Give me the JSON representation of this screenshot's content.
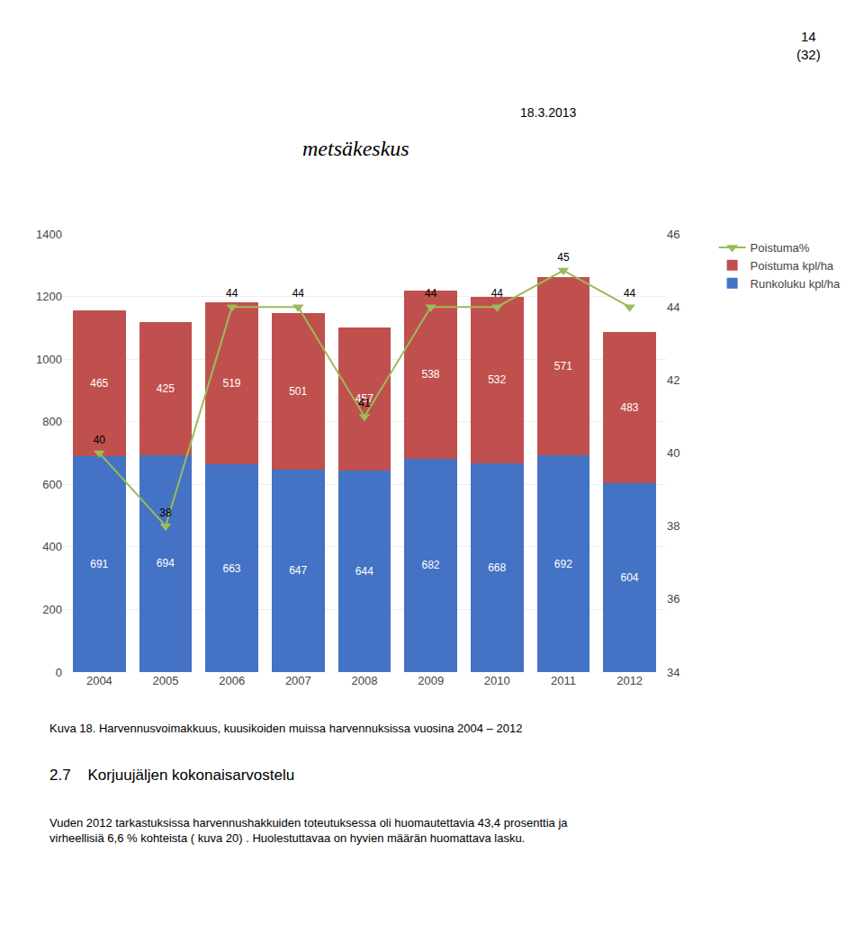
{
  "chart_data": {
    "type": "bar",
    "stacked": true,
    "categories": [
      "2004",
      "2005",
      "2006",
      "2007",
      "2008",
      "2009",
      "2010",
      "2011",
      "2012"
    ],
    "series": [
      {
        "name": "Runkoluku kpl/ha",
        "type": "bar",
        "color": "#4472C4",
        "values": [
          691,
          694,
          663,
          647,
          644,
          682,
          668,
          692,
          604
        ]
      },
      {
        "name": "Poistuma kpl/ha",
        "type": "bar",
        "color": "#C0504D",
        "values": [
          465,
          425,
          519,
          501,
          457,
          538,
          532,
          571,
          483
        ]
      },
      {
        "name": "Poistuma%",
        "type": "line",
        "axis": "y2",
        "color": "#9BBB59",
        "marker": "triangle-down",
        "values": [
          40,
          38,
          44,
          44,
          41,
          44,
          44,
          45,
          44
        ]
      }
    ],
    "ylim": [
      0,
      1400
    ],
    "yticks": [
      0,
      200,
      400,
      600,
      800,
      1000,
      1200,
      1400
    ],
    "y2lim": [
      34,
      46
    ],
    "y2ticks": [
      34,
      36,
      38,
      40,
      42,
      44,
      46
    ],
    "grid": true,
    "legend": "upper right",
    "data_labels": true,
    "annotations": [
      "14\n(32)",
      "18.3.2013",
      "metsäkeskus",
      "Kuva 18. Harvennusvoimakkuus, kuusikoiden muissa harvennuksissa vuosina 2004 – 2012",
      "2.7    Korjuujäljen kokonaisarvostelu",
      "Vuden 2012 tarkastuksissa harvennushakkuiden toteutuksessa oli huomautettavia 43,4 prosenttia ja\nvirheellisiä 6,6 % kohteista ( kuva 20) . Huolestuttavaa on hyvien määrän huomattava lasku."
    ]
  }
}
